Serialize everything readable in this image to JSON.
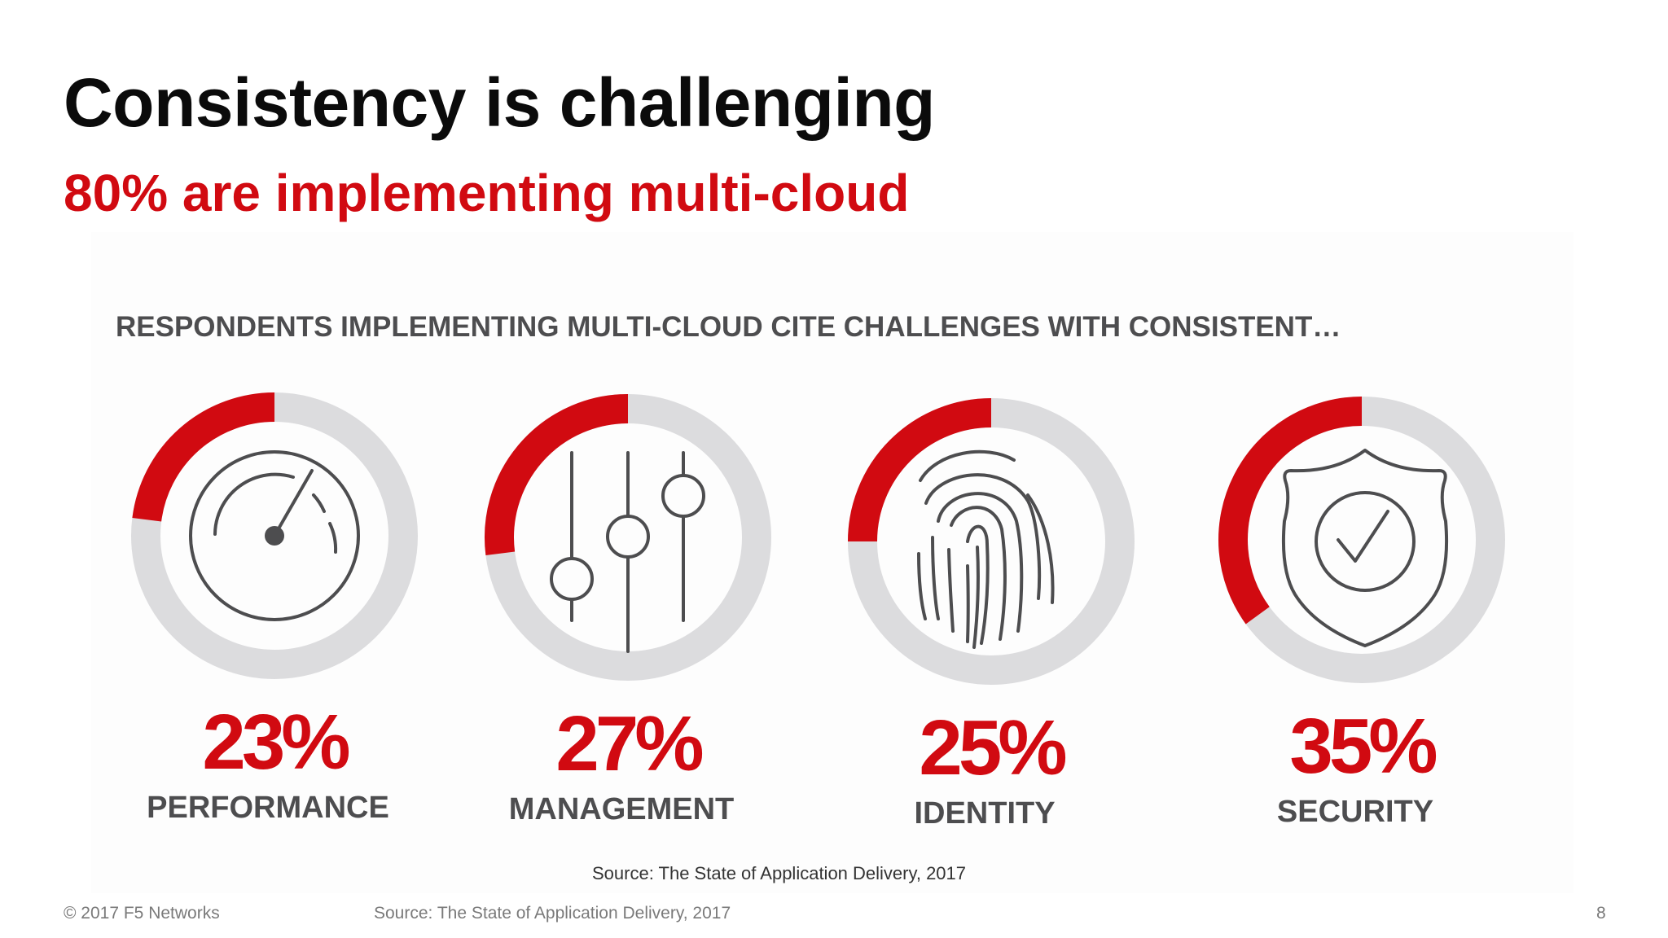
{
  "slide": {
    "title": "Consistency is challenging",
    "subtitle": "80% are implementing multi-cloud",
    "lead": "RESPONDENTS IMPLEMENTING MULTI-CLOUD CITE CHALLENGES WITH CONSISTENT…",
    "source_note": "Source: The State of Application Delivery, 2017",
    "footer": {
      "copyright": "© 2017 F5 Networks",
      "source": "Source: The State of Application Delivery, 2017",
      "page_number": "8"
    }
  },
  "colors": {
    "accent": "#d10a11",
    "track": "#dcdcde",
    "icon": "#4d4d4f",
    "title": "#0b0b0b"
  },
  "chart_data": {
    "type": "pie",
    "subtype": "donut",
    "categories": [
      "PERFORMANCE",
      "MANAGEMENT",
      "IDENTITY",
      "SECURITY"
    ],
    "values": [
      23,
      27,
      25,
      35
    ],
    "labels": [
      "23%",
      "27%",
      "25%",
      "35%"
    ],
    "icons": [
      "speedometer-icon",
      "sliders-icon",
      "fingerprint-icon",
      "shield-check-icon"
    ],
    "unit": "%",
    "max": 100
  }
}
